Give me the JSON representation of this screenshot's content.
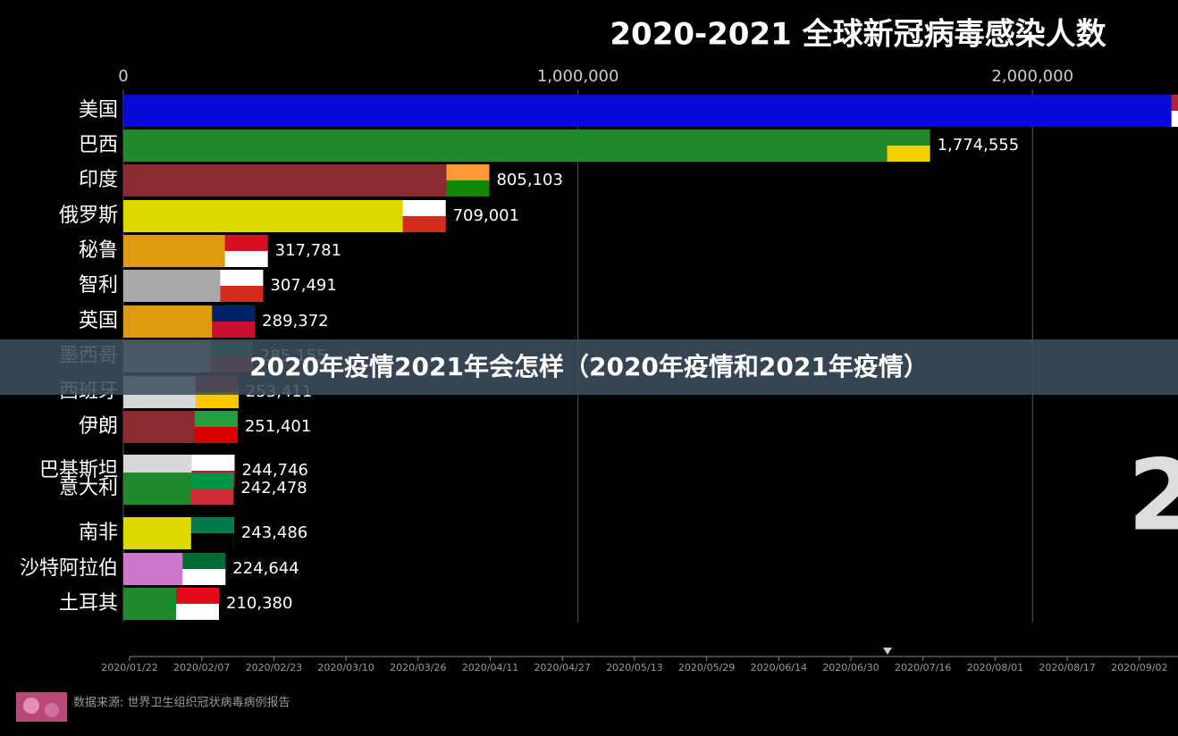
{
  "chart_data": {
    "type": "bar",
    "orientation": "horizontal",
    "title": "2020-2021 全球新冠病毒感染人数",
    "caption": "2020年疫情2021年会怎样（2020年疫情和2021年疫情）",
    "source": "数据来源: 世界卫生组织冠状病毒病例报告",
    "watermark": "2",
    "categories": [
      "美国",
      "巴西",
      "印度",
      "俄罗斯",
      "秘鲁",
      "智利",
      "英国",
      "墨西哥",
      "西班牙",
      "伊朗",
      "巴基斯坦",
      "意大利",
      "南非",
      "沙特阿拉伯",
      "土耳其"
    ],
    "values": [
      2400000,
      1774555,
      805103,
      709001,
      317781,
      307491,
      289372,
      285155,
      253411,
      251401,
      244746,
      242478,
      243486,
      224644,
      210380
    ],
    "value_labels": [
      null,
      "1,774,555",
      "805,103",
      "709,001",
      "317,781",
      "307,491",
      "289,372",
      "285,155",
      "253,411",
      "251,401",
      "244,746",
      "242,478",
      "243,486",
      "224,644",
      "210,380"
    ],
    "colors": [
      "#0a0ad8",
      "#1f8a2a",
      "#8b2a30",
      "#dcd800",
      "#e09a10",
      "#a8a8a8",
      "#e09a10",
      "#9a9a9a",
      "#d8d8d8",
      "#8b2a30",
      "#d8d8d8",
      "#1f8a2a",
      "#dcd800",
      "#cc77cc",
      "#1f8a2a"
    ],
    "xlim": [
      0,
      2320000
    ],
    "xticks": [
      0,
      {
        "value": 1000000,
        "label": "1,000,000"
      },
      {
        "value": 2000000,
        "label": "2,000,000"
      }
    ],
    "grid": true,
    "timeline": [
      "2020/01/22",
      "2020/02/07",
      "2020/02/23",
      "2020/03/10",
      "2020/03/26",
      "2020/04/11",
      "2020/04/27",
      "2020/05/13",
      "2020/05/29",
      "2020/06/14",
      "2020/06/30",
      "2020/07/16",
      "2020/08/01",
      "2020/08/17",
      "2020/09/02"
    ]
  }
}
